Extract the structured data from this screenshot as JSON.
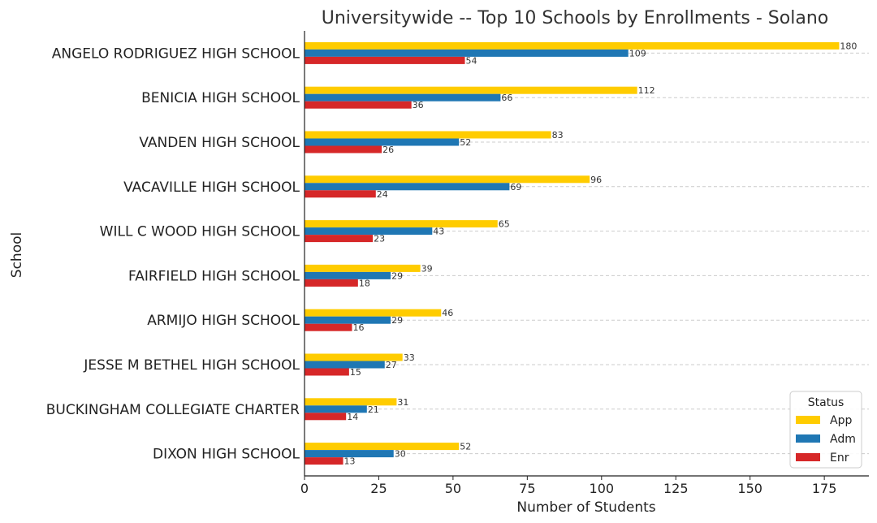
{
  "chart_data": {
    "type": "bar",
    "orientation": "horizontal",
    "title": "Universitywide -- Top 10 Schools by Enrollments - Solano",
    "xlabel": "Number of Students",
    "ylabel": "School",
    "xlim": [
      0,
      190
    ],
    "xticks": [
      0,
      25,
      50,
      75,
      100,
      125,
      150,
      175
    ],
    "grid": "horizontal dashed",
    "legend": {
      "title": "Status",
      "placement": "bottom-right"
    },
    "categories": [
      "ANGELO RODRIGUEZ HIGH SCHOOL",
      "BENICIA HIGH SCHOOL",
      "VANDEN HIGH SCHOOL",
      "VACAVILLE HIGH SCHOOL",
      "WILL C WOOD HIGH SCHOOL",
      "FAIRFIELD HIGH SCHOOL",
      "ARMIJO HIGH SCHOOL",
      "JESSE M BETHEL HIGH SCHOOL",
      "BUCKINGHAM COLLEGIATE CHARTER",
      "DIXON HIGH SCHOOL"
    ],
    "series": [
      {
        "name": "App",
        "color": "#FFCC00",
        "values": [
          180,
          112,
          83,
          96,
          65,
          39,
          46,
          33,
          31,
          52
        ]
      },
      {
        "name": "Adm",
        "color": "#1F77B4",
        "values": [
          109,
          66,
          52,
          69,
          43,
          29,
          29,
          27,
          21,
          30
        ]
      },
      {
        "name": "Enr",
        "color": "#D62728",
        "values": [
          54,
          36,
          26,
          24,
          23,
          18,
          16,
          15,
          14,
          13
        ]
      }
    ]
  }
}
